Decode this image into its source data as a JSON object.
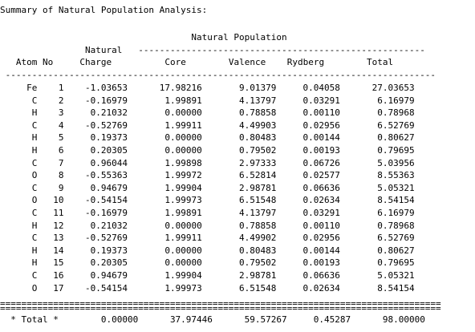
{
  "report": {
    "title": "Summary of Natural Population Analysis:",
    "group_header": "Natural Population",
    "header_top_charge": "Natural",
    "columns": {
      "atom": "Atom",
      "no": "No",
      "charge": "Charge",
      "core": "Core",
      "valence": "Valence",
      "rydberg": "Rydberg",
      "total": "Total"
    },
    "rows": [
      {
        "atom": "Fe",
        "no": "1",
        "charge": "-1.03653",
        "core": "17.98216",
        "valence": "9.01379",
        "rydberg": "0.04058",
        "total": "27.03653"
      },
      {
        "atom": "C",
        "no": "2",
        "charge": "-0.16979",
        "core": "1.99891",
        "valence": "4.13797",
        "rydberg": "0.03291",
        "total": "6.16979"
      },
      {
        "atom": "H",
        "no": "3",
        "charge": "0.21032",
        "core": "0.00000",
        "valence": "0.78858",
        "rydberg": "0.00110",
        "total": "0.78968"
      },
      {
        "atom": "C",
        "no": "4",
        "charge": "-0.52769",
        "core": "1.99911",
        "valence": "4.49903",
        "rydberg": "0.02956",
        "total": "6.52769"
      },
      {
        "atom": "H",
        "no": "5",
        "charge": "0.19373",
        "core": "0.00000",
        "valence": "0.80483",
        "rydberg": "0.00144",
        "total": "0.80627"
      },
      {
        "atom": "H",
        "no": "6",
        "charge": "0.20305",
        "core": "0.00000",
        "valence": "0.79502",
        "rydberg": "0.00193",
        "total": "0.79695"
      },
      {
        "atom": "C",
        "no": "7",
        "charge": "0.96044",
        "core": "1.99898",
        "valence": "2.97333",
        "rydberg": "0.06726",
        "total": "5.03956"
      },
      {
        "atom": "O",
        "no": "8",
        "charge": "-0.55363",
        "core": "1.99972",
        "valence": "6.52814",
        "rydberg": "0.02577",
        "total": "8.55363"
      },
      {
        "atom": "C",
        "no": "9",
        "charge": "0.94679",
        "core": "1.99904",
        "valence": "2.98781",
        "rydberg": "0.06636",
        "total": "5.05321"
      },
      {
        "atom": "O",
        "no": "10",
        "charge": "-0.54154",
        "core": "1.99973",
        "valence": "6.51548",
        "rydberg": "0.02634",
        "total": "8.54154"
      },
      {
        "atom": "C",
        "no": "11",
        "charge": "-0.16979",
        "core": "1.99891",
        "valence": "4.13797",
        "rydberg": "0.03291",
        "total": "6.16979"
      },
      {
        "atom": "H",
        "no": "12",
        "charge": "0.21032",
        "core": "0.00000",
        "valence": "0.78858",
        "rydberg": "0.00110",
        "total": "0.78968"
      },
      {
        "atom": "C",
        "no": "13",
        "charge": "-0.52769",
        "core": "1.99911",
        "valence": "4.49902",
        "rydberg": "0.02956",
        "total": "6.52769"
      },
      {
        "atom": "H",
        "no": "14",
        "charge": "0.19373",
        "core": "0.00000",
        "valence": "0.80483",
        "rydberg": "0.00144",
        "total": "0.80627"
      },
      {
        "atom": "H",
        "no": "15",
        "charge": "0.20305",
        "core": "0.00000",
        "valence": "0.79502",
        "rydberg": "0.00193",
        "total": "0.79695"
      },
      {
        "atom": "C",
        "no": "16",
        "charge": "0.94679",
        "core": "1.99904",
        "valence": "2.98781",
        "rydberg": "0.06636",
        "total": "5.05321"
      },
      {
        "atom": "O",
        "no": "17",
        "charge": "-0.54154",
        "core": "1.99973",
        "valence": "6.51548",
        "rydberg": "0.02634",
        "total": "8.54154"
      }
    ],
    "totals": {
      "label": "* Total *",
      "charge": "0.00000",
      "core": "37.97446",
      "valence": "59.57267",
      "rydberg": "0.45287",
      "total": "98.00000"
    }
  }
}
